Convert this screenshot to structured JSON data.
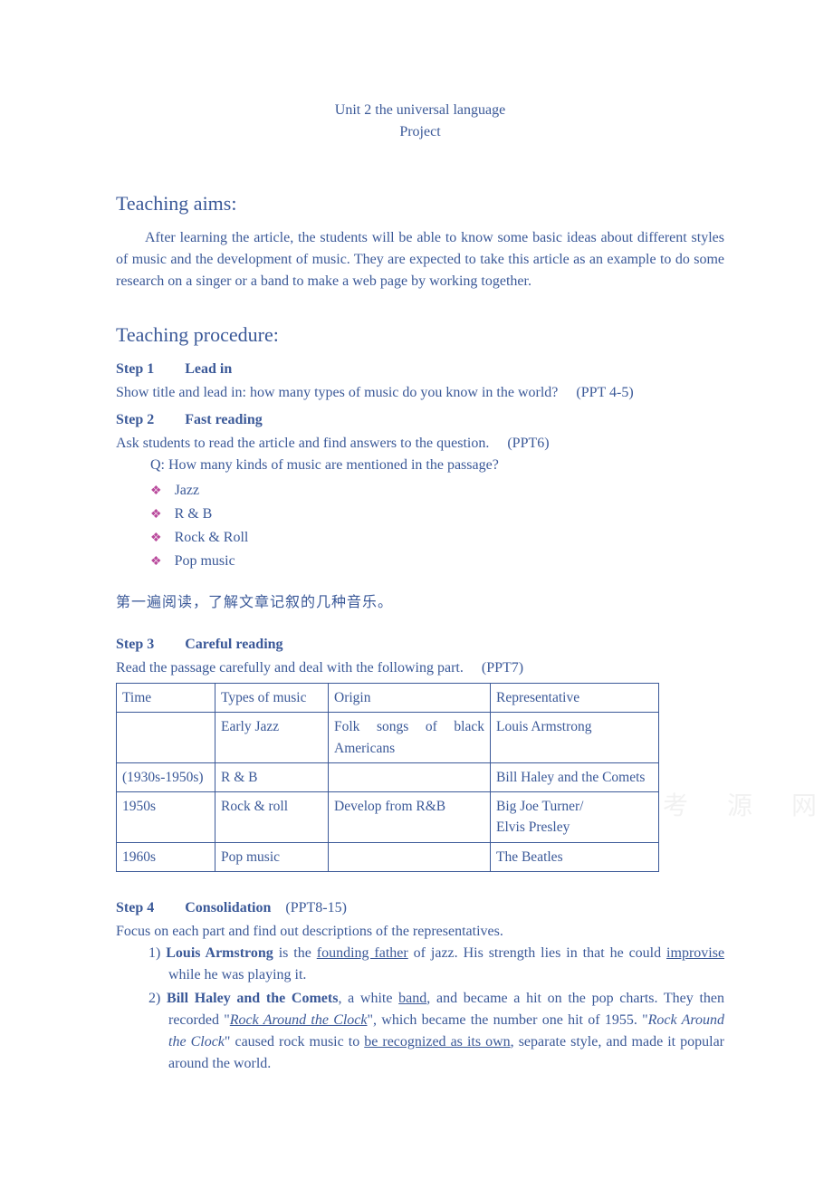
{
  "header": {
    "unit_title": "Unit 2 the universal language",
    "subtitle": "Project"
  },
  "aims": {
    "heading": "Teaching aims:",
    "body": "After learning the article, the students will be able to know some basic ideas about different styles of music and the development of music. They are expected to take this article as an example to do some research on a singer or a band to make a web page by working together."
  },
  "procedure": {
    "heading": "Teaching procedure:",
    "step1": {
      "label": "Step 1",
      "title": "Lead in",
      "body": "Show title and lead in: how many types of music do you know in the world?",
      "ppt": "(PPT 4-5)"
    },
    "step2": {
      "label": "Step 2",
      "title": "Fast reading",
      "body": "Ask students to read the article and find answers to the question.",
      "ppt": "(PPT6)",
      "question": "Q: How many kinds of music are mentioned in the passage?",
      "bullets": [
        "Jazz",
        "R & B",
        "Rock & Roll",
        "Pop music"
      ]
    },
    "chinese_note": "第一遍阅读，了解文章记叙的几种音乐。",
    "step3": {
      "label": "Step 3",
      "title": "Careful reading",
      "body": "Read the passage carefully and deal with the following part.",
      "ppt": "(PPT7)",
      "table": {
        "headers": [
          "Time",
          "Types of music",
          "Origin",
          "Representative"
        ],
        "rows": [
          [
            "",
            "Early Jazz",
            {
              "line1": "Folk songs of black",
              "line2": "Americans"
            },
            "Louis Armstrong"
          ],
          [
            "(1930s-1950s)",
            "R & B",
            "",
            "Bill Haley and the Comets"
          ],
          [
            "1950s",
            "Rock & roll",
            "Develop from R&B",
            {
              "line1": "Big Joe Turner/",
              "line2": "Elvis Presley"
            }
          ],
          [
            "1960s",
            "Pop music",
            "",
            "The Beatles"
          ]
        ]
      }
    },
    "step4": {
      "label": "Step 4",
      "title": "Consolidation",
      "ppt": "(PPT8-15)",
      "body": "Focus on each part and find out descriptions of the representatives.",
      "items": {
        "i1": {
          "num": "1) ",
          "name": "Louis Armstrong",
          "t1": " is the ",
          "u1": "founding father",
          "t2": " of jazz. His strength lies in that he could ",
          "u2": "improvise",
          "t3": " while he was playing it."
        },
        "i2": {
          "num": "2) ",
          "name": "Bill Haley and the Comets",
          "t1": ", a white ",
          "u1": "band",
          "t2": ", and became a hit on the pop charts. They then recorded \"",
          "it1": "Rock Around the Clock",
          "t3": "\", which became the number one hit of 1955. \"",
          "it2": "Rock Around the Clock",
          "t4": "\" caused rock music to ",
          "u2": "be recognized as its own",
          "t5": ", separate style, and made it popular around the world."
        }
      }
    }
  },
  "watermark": "考 源 网"
}
